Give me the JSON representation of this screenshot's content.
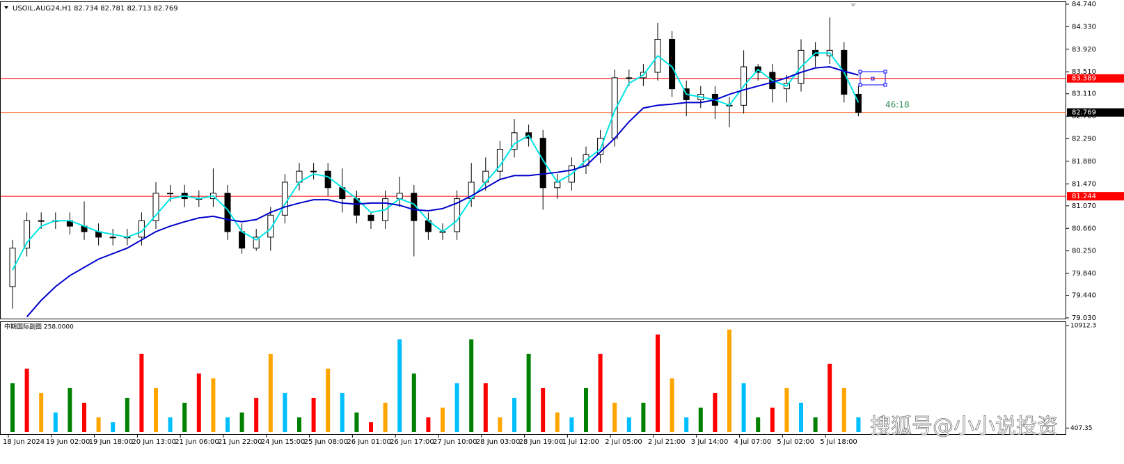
{
  "chart_data": [
    {
      "type": "candlestick",
      "title": "USOIL.AUG24,H1  82.734 82.781 82.713 82.769",
      "annotation": "46:18",
      "categories": [
        "18 Jun 2024",
        null,
        null,
        "19 Jun 02:00",
        null,
        null,
        "19 Jun 18:00",
        null,
        null,
        "20 Jun 13:00",
        null,
        null,
        "21 Jun 06:00",
        null,
        null,
        "21 Jun 22:00",
        null,
        null,
        "24 Jun 15:00",
        null,
        null,
        "25 Jun 08:00",
        null,
        null,
        "26 Jun 01:00",
        null,
        null,
        "26 Jun 17:00",
        null,
        null,
        "27 Jun 10:00",
        null,
        null,
        "28 Jun 03:00",
        null,
        null,
        "28 Jun 19:00",
        null,
        null,
        "1 Jul 12:00",
        null,
        null,
        "2 Jul 05:00",
        null,
        null,
        "2 Jul 21:00",
        null,
        null,
        "3 Jul 14:00",
        null,
        null,
        "4 Jul 07:00",
        null,
        null,
        "5 Jul 02:00",
        null,
        null,
        "5 Jul 18:00",
        null,
        null
      ],
      "open": [
        79.6,
        80.3,
        80.8,
        80.8,
        80.8,
        80.7,
        80.6,
        80.5,
        80.5,
        80.5,
        80.8,
        81.3,
        81.3,
        81.2,
        81.2,
        81.3,
        80.6,
        80.3,
        80.5,
        80.9,
        81.5,
        81.7,
        81.7,
        81.4,
        81.2,
        80.9,
        80.8,
        81.2,
        81.3,
        80.8,
        80.6,
        80.6,
        81.2,
        81.5,
        81.7,
        82.1,
        82.4,
        82.3,
        81.4,
        81.5,
        81.8,
        82.0,
        82.3,
        83.4,
        83.4,
        83.5,
        84.1,
        83.2,
        83.0,
        83.1,
        82.9,
        82.9,
        83.6,
        83.5,
        83.2,
        83.3,
        83.9,
        83.8,
        83.9,
        83.1
      ],
      "high": [
        80.45,
        80.95,
        80.95,
        80.95,
        80.95,
        81.15,
        80.75,
        80.65,
        80.65,
        80.95,
        81.5,
        81.45,
        81.45,
        81.35,
        81.75,
        81.45,
        80.75,
        80.65,
        81.05,
        81.65,
        81.85,
        81.85,
        81.85,
        81.75,
        81.35,
        80.95,
        81.35,
        81.6,
        81.45,
        80.95,
        80.75,
        81.35,
        81.85,
        81.95,
        82.25,
        82.65,
        82.55,
        82.45,
        81.65,
        81.95,
        82.15,
        82.45,
        83.55,
        83.55,
        83.65,
        84.4,
        84.25,
        83.35,
        83.25,
        83.25,
        83.05,
        83.9,
        83.65,
        83.65,
        83.45,
        84.1,
        84.05,
        84.5,
        84.05,
        83.25
      ],
      "low": [
        79.2,
        80.15,
        80.65,
        80.65,
        80.55,
        80.45,
        80.35,
        80.35,
        80.35,
        80.35,
        80.65,
        81.15,
        81.05,
        81.05,
        81.05,
        80.45,
        80.2,
        80.25,
        80.25,
        80.75,
        81.35,
        81.55,
        81.25,
        80.95,
        80.75,
        80.65,
        80.65,
        81.05,
        80.15,
        80.45,
        80.45,
        80.45,
        81.05,
        81.35,
        81.55,
        81.95,
        82.15,
        81.0,
        81.2,
        81.35,
        81.65,
        81.85,
        82.15,
        83.25,
        83.25,
        83.35,
        83.05,
        82.7,
        82.85,
        82.65,
        82.5,
        82.75,
        83.35,
        82.95,
        82.95,
        83.15,
        83.6,
        83.65,
        82.95,
        82.7
      ],
      "close": [
        80.3,
        80.8,
        80.8,
        80.8,
        80.7,
        80.6,
        80.5,
        80.5,
        80.5,
        80.8,
        81.3,
        81.3,
        81.2,
        81.2,
        81.3,
        80.6,
        80.3,
        80.5,
        80.9,
        81.5,
        81.7,
        81.7,
        81.4,
        81.2,
        80.9,
        80.8,
        81.2,
        81.3,
        80.8,
        80.6,
        80.6,
        81.2,
        81.5,
        81.7,
        82.1,
        82.4,
        82.3,
        81.4,
        81.5,
        81.8,
        82.0,
        82.3,
        83.4,
        83.4,
        83.5,
        84.1,
        83.2,
        83.0,
        83.1,
        82.9,
        82.9,
        83.6,
        83.5,
        83.2,
        83.3,
        83.9,
        83.8,
        83.9,
        83.1,
        82.77
      ],
      "up_color": "#ffffff",
      "down_color": "#000000",
      "series": [
        {
          "color": "#00e5e5",
          "values": [
            79.9,
            80.4,
            80.7,
            80.8,
            80.8,
            80.7,
            80.6,
            80.55,
            80.5,
            80.6,
            80.9,
            81.2,
            81.25,
            81.2,
            81.25,
            81.0,
            80.6,
            80.45,
            80.65,
            81.1,
            81.5,
            81.65,
            81.6,
            81.4,
            81.2,
            80.95,
            81.0,
            81.2,
            81.1,
            80.8,
            80.6,
            80.8,
            81.2,
            81.5,
            81.8,
            82.2,
            82.35,
            81.9,
            81.5,
            81.65,
            81.9,
            82.1,
            82.8,
            83.3,
            83.45,
            83.8,
            83.6,
            83.1,
            83.05,
            83.0,
            82.9,
            83.25,
            83.55,
            83.35,
            83.25,
            83.6,
            83.85,
            83.85,
            83.5,
            82.95
          ]
        },
        {
          "color": "#0000cc",
          "values": [
            null,
            79.05,
            79.35,
            79.6,
            79.8,
            79.95,
            80.1,
            80.2,
            80.3,
            80.45,
            80.6,
            80.7,
            80.78,
            80.85,
            80.88,
            80.82,
            80.78,
            80.82,
            80.95,
            81.05,
            81.12,
            81.18,
            81.18,
            81.12,
            81.1,
            81.12,
            81.12,
            81.08,
            81.0,
            80.98,
            81.02,
            81.12,
            81.25,
            81.4,
            81.55,
            81.62,
            81.62,
            81.65,
            81.68,
            81.72,
            81.8,
            82.05,
            82.3,
            82.6,
            82.85,
            82.9,
            82.92,
            82.95,
            82.95,
            83.0,
            83.1,
            83.18,
            83.25,
            83.32,
            83.4,
            83.5,
            83.58,
            83.6,
            83.52,
            83.45
          ]
        }
      ],
      "hlines": [
        {
          "value": 83.389,
          "color": "#ff0000",
          "box_color": "#ff0000"
        },
        {
          "value": 82.769,
          "color": "#ff6a2a",
          "box_color": "#000000"
        },
        {
          "value": 81.244,
          "color": "#ff0000",
          "box_color": "#ff0000"
        }
      ],
      "ylim": [
        79.03,
        84.74
      ],
      "yticks": [
        {
          "value": 79.03,
          "label": "79.030"
        },
        {
          "value": 79.44,
          "label": "79.440"
        },
        {
          "value": 79.84,
          "label": "79.840"
        },
        {
          "value": 80.25,
          "label": "80.250"
        },
        {
          "value": 80.66,
          "label": "80.660"
        },
        {
          "value": 81.07,
          "label": "81.070"
        },
        {
          "value": 81.47,
          "label": "81.470"
        },
        {
          "value": 81.88,
          "label": "81.880"
        },
        {
          "value": 82.29,
          "label": "82.290"
        },
        {
          "value": 82.7,
          "label": "82.700"
        },
        {
          "value": 83.11,
          "label": "83.110"
        },
        {
          "value": 83.51,
          "label": "83.510"
        },
        {
          "value": 83.92,
          "label": "83.920"
        },
        {
          "value": 84.33,
          "label": "84.330"
        },
        {
          "value": 84.74,
          "label": "84.740"
        }
      ]
    },
    {
      "type": "bar",
      "title": "中期国际副图 258.0000",
      "annotation": "搜狐号@小小说投资",
      "values": [
        5000,
        6500,
        4000,
        2000,
        4500,
        3000,
        1500,
        1000,
        3500,
        8000,
        4500,
        1500,
        3000,
        6000,
        5500,
        1500,
        2000,
        3500,
        8000,
        4000,
        1500,
        3500,
        6500,
        4000,
        2000,
        1000,
        3000,
        9500,
        6000,
        1500,
        2500,
        5000,
        9500,
        5000,
        1500,
        3500,
        8000,
        4500,
        2000,
        1500,
        4500,
        8000,
        3000,
        1500,
        3000,
        10000,
        5500,
        1500,
        2500,
        4000,
        10500,
        5000,
        1500,
        2500,
        4500,
        3000,
        1500,
        7000,
        4500,
        1500
      ],
      "colors": [
        "green",
        "red",
        "orange",
        "deepskyblue",
        "green",
        "red",
        "orange",
        "deepskyblue",
        "green",
        "red",
        "orange",
        "deepskyblue",
        "green",
        "red",
        "orange",
        "deepskyblue",
        "green",
        "red",
        "orange",
        "deepskyblue",
        "green",
        "red",
        "orange",
        "deepskyblue",
        "green",
        "red",
        "orange",
        "deepskyblue",
        "green",
        "red",
        "orange",
        "deepskyblue",
        "green",
        "red",
        "orange",
        "deepskyblue",
        "green",
        "red",
        "orange",
        "deepskyblue",
        "green",
        "red",
        "orange",
        "deepskyblue",
        "green",
        "red",
        "orange",
        "deepskyblue",
        "green",
        "red",
        "orange",
        "deepskyblue",
        "green",
        "red",
        "orange",
        "deepskyblue",
        "green",
        "red",
        "orange",
        "deepskyblue"
      ],
      "ylim": [
        0,
        10912.3
      ],
      "yticks": [
        407.35,
        10912.3
      ]
    }
  ]
}
